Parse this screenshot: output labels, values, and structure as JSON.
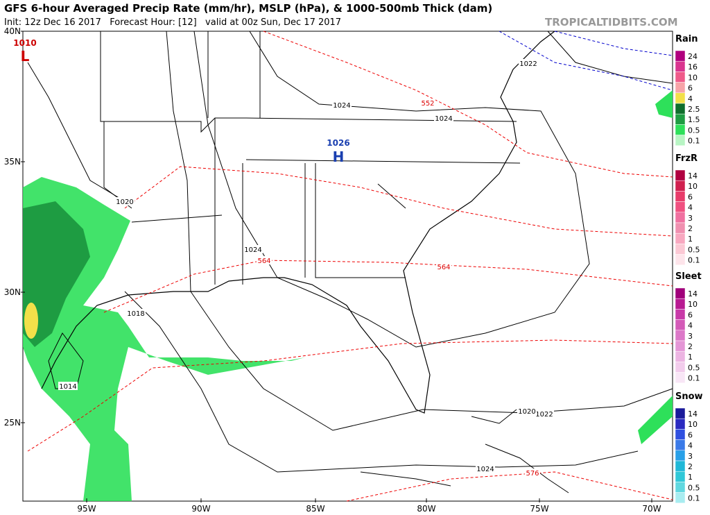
{
  "header": {
    "title": "GFS 6-hour Averaged Precip Rate (mm/hr), MSLP (hPa), & 1000-500mb Thick (dam)",
    "subtitle": "Init: 12z Dec 16 2017   Forecast Hour: [12]   valid at 00z Sun, Dec 17 2017",
    "credit": "TROPICALTIDBITS.COM"
  },
  "map": {
    "lat_labels": [
      "40N",
      "35N",
      "30N",
      "25N"
    ],
    "lon_labels": [
      "95W",
      "90W",
      "85W",
      "80W",
      "75W",
      "70W"
    ],
    "low_center": {
      "pressure": 1010,
      "symbol": "L"
    },
    "high_center": {
      "pressure": 1026,
      "symbol": "H"
    },
    "isobar_labels": [
      1024,
      1024,
      1022,
      1024,
      1020,
      1024,
      1018,
      1014,
      1022,
      1020
    ],
    "thickness_labels": [
      552,
      564,
      564,
      576
    ]
  },
  "legend": [
    {
      "title": "Rain",
      "levels": [
        24,
        16,
        10,
        6,
        4,
        2.5,
        1.5,
        0.5,
        0.1
      ]
    },
    {
      "title": "FrzR",
      "levels": [
        14,
        10,
        6,
        4,
        3,
        2,
        1,
        0.5,
        0.1
      ]
    },
    {
      "title": "Sleet",
      "levels": [
        14,
        10,
        6,
        4,
        3,
        2,
        1,
        0.5,
        0.1
      ]
    },
    {
      "title": "Snow",
      "levels": [
        14,
        10,
        6,
        4,
        3,
        2,
        1,
        0.5,
        0.1
      ]
    }
  ]
}
